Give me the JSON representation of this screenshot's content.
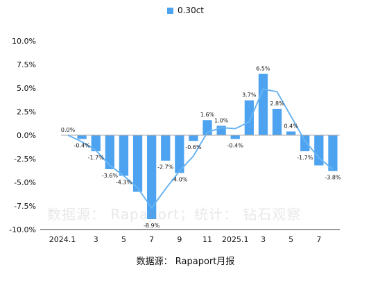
{
  "legend": {
    "label": "0.30ct",
    "color": "#4da3f0"
  },
  "source": "数据源： Rapaport月报",
  "watermark": "数据源： Rapaport；统计： 钻石观察",
  "chart_data": {
    "type": "bar",
    "ylim": [
      -10,
      10
    ],
    "y_ticks": [
      10,
      7.5,
      5,
      2.5,
      0,
      -2.5,
      -5,
      -7.5,
      -10
    ],
    "y_tick_labels": [
      "10.0%",
      "7.5%",
      "5.0%",
      "2.5%",
      "0.0%",
      "-2.5%",
      "-5.0%",
      "-7.5%",
      "-10.0%"
    ],
    "x_tick_labels": [
      {
        "index": 0,
        "label": "2024.1"
      },
      {
        "index": 2,
        "label": "3"
      },
      {
        "index": 4,
        "label": "5"
      },
      {
        "index": 6,
        "label": "7"
      },
      {
        "index": 8,
        "label": "9"
      },
      {
        "index": 10,
        "label": "11"
      },
      {
        "index": 12,
        "label": "2025.1"
      },
      {
        "index": 14,
        "label": "3"
      },
      {
        "index": 16,
        "label": "5"
      },
      {
        "index": 18,
        "label": "7"
      }
    ],
    "series": [
      {
        "name": "0.30ct",
        "color": "#4da3f0",
        "values": [
          0.0,
          -0.4,
          -1.7,
          -3.6,
          -4.3,
          -6.0,
          -8.9,
          -2.7,
          -4.0,
          -0.6,
          1.6,
          1.0,
          -0.4,
          3.7,
          6.5,
          2.8,
          0.4,
          -1.7,
          -3.2,
          -3.8
        ]
      }
    ],
    "data_labels": [
      {
        "index": 0,
        "text": "0.0%"
      },
      {
        "index": 1,
        "text": "-0.4%"
      },
      {
        "index": 2,
        "text": "-1.7%"
      },
      {
        "index": 3,
        "text": "-3.6%"
      },
      {
        "index": 4,
        "text": "-4.3%"
      },
      {
        "index": 6,
        "text": "-8.9%"
      },
      {
        "index": 7,
        "text": "-2.7%"
      },
      {
        "index": 8,
        "text": "-4.0%"
      },
      {
        "index": 9,
        "text": "-0.6%"
      },
      {
        "index": 10,
        "text": "1.6%"
      },
      {
        "index": 11,
        "text": "1.0%"
      },
      {
        "index": 12,
        "text": "-0.4%"
      },
      {
        "index": 13,
        "text": "3.7%"
      },
      {
        "index": 14,
        "text": "6.5%"
      },
      {
        "index": 15,
        "text": "2.8%"
      },
      {
        "index": 16,
        "text": "0.4%"
      },
      {
        "index": 17,
        "text": "-1.7%"
      },
      {
        "index": 19,
        "text": "-3.8%"
      }
    ],
    "trend_line": {
      "color": "#6ab4f2",
      "values": [
        0.0,
        -0.7,
        -1.6,
        -3.2,
        -4.3,
        -5.6,
        -7.7,
        -5.7,
        -3.8,
        -2.2,
        0.3,
        0.8,
        0.7,
        1.4,
        4.9,
        4.6,
        2.0,
        -0.6,
        -2.4,
        -3.6
      ]
    },
    "grid": false
  }
}
